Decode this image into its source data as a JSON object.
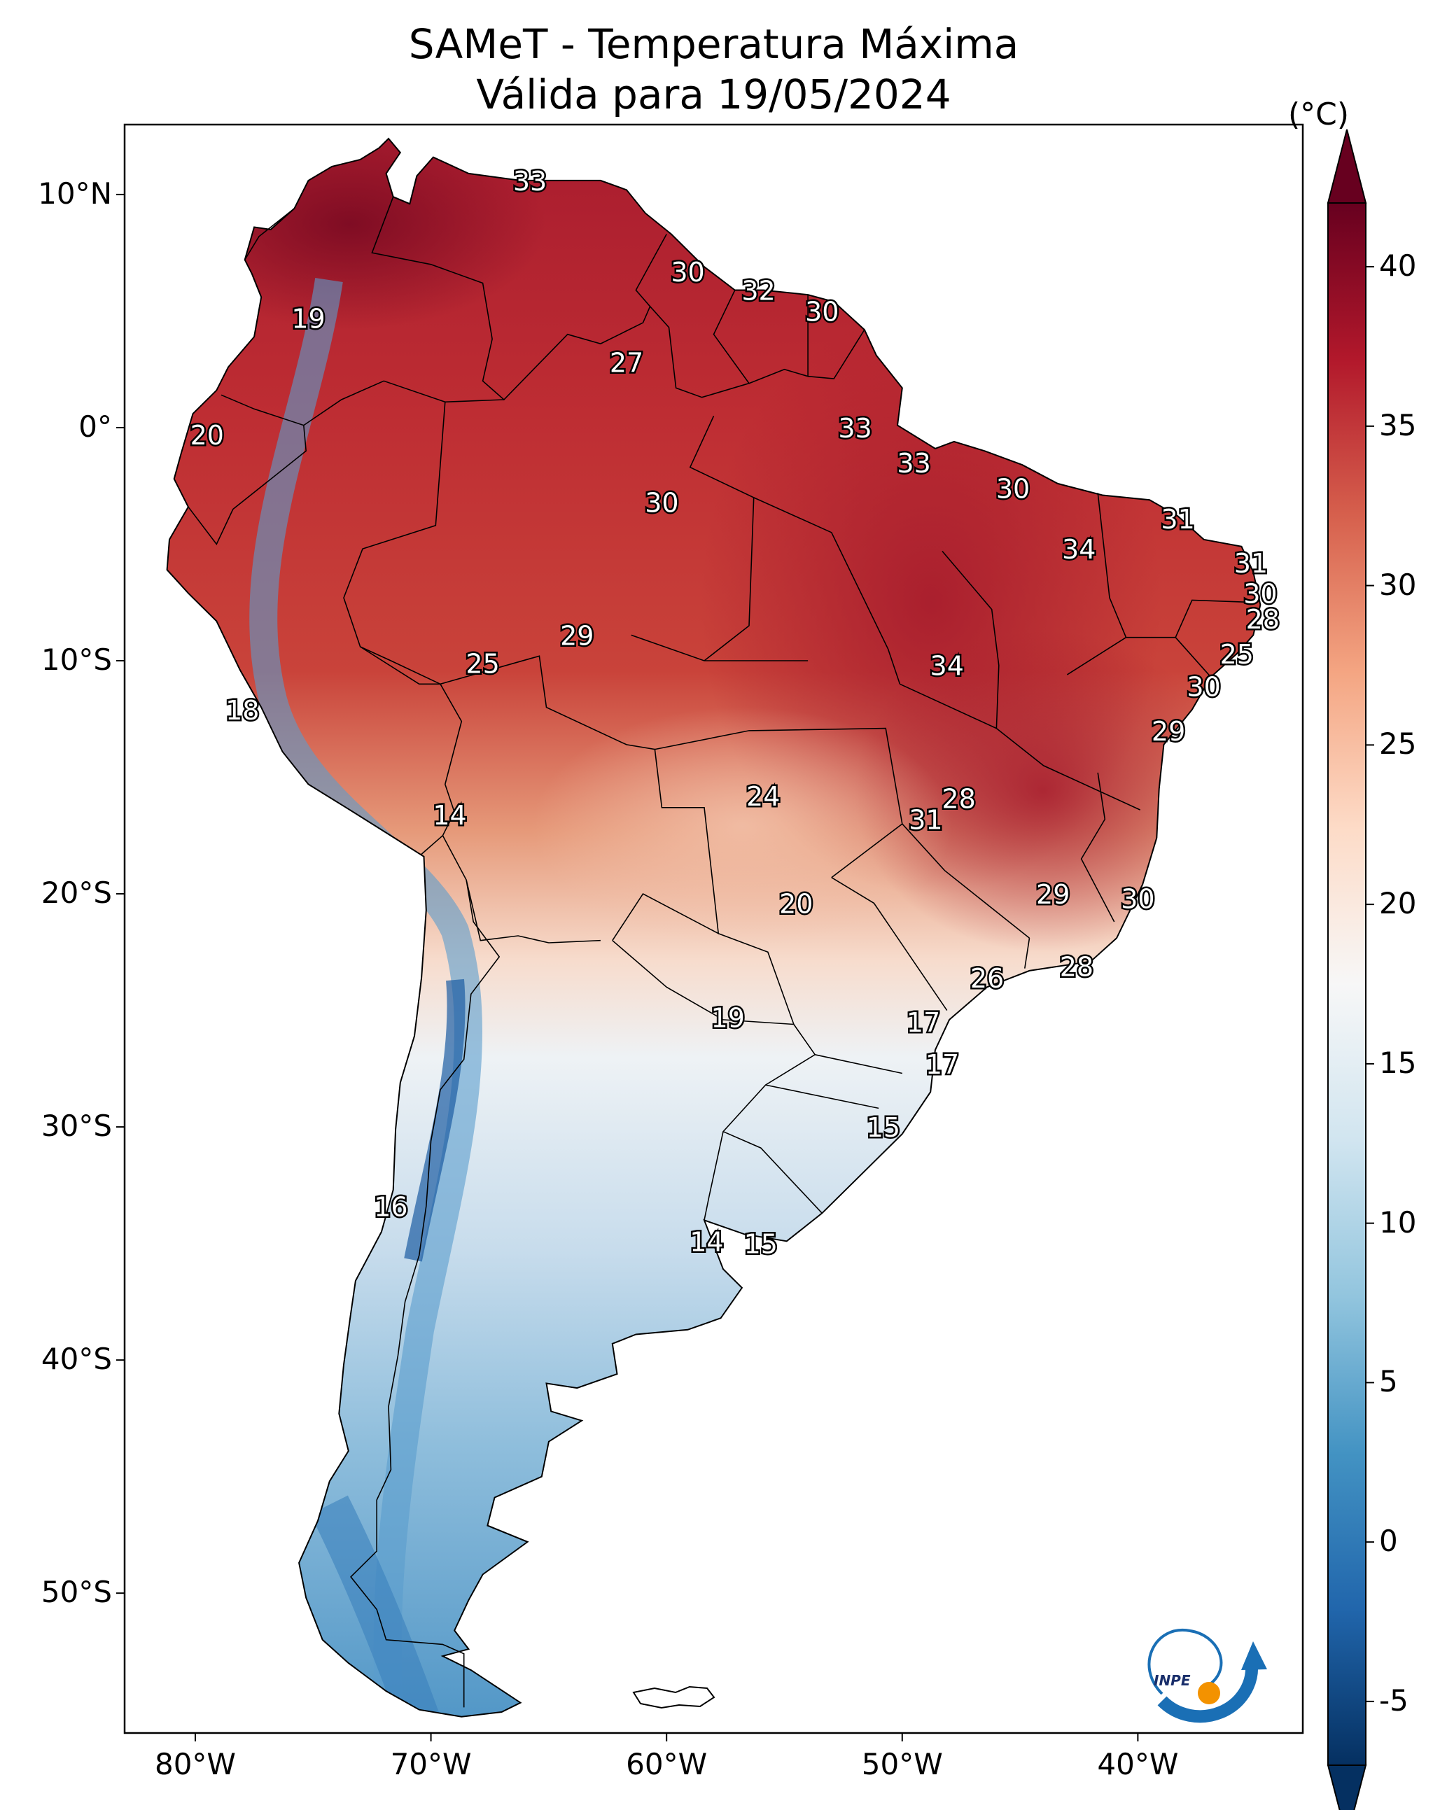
{
  "title": {
    "line1": "SAMeT - Temperatura Máxima",
    "line2": "Válida para 19/05/2024"
  },
  "map": {
    "lat_ticks": [
      "10°N",
      "0°",
      "10°S",
      "20°S",
      "30°S",
      "40°S",
      "50°S"
    ],
    "lon_ticks": [
      "80°W",
      "70°W",
      "60°W",
      "50°W",
      "40°W"
    ],
    "extent": {
      "lon_min": -83,
      "lon_max": -33,
      "lat_min": -56,
      "lat_max": 13
    },
    "labels": [
      {
        "text": "33",
        "lon": -65.8,
        "lat": 10.6
      },
      {
        "text": "19",
        "lon": -75.2,
        "lat": 4.7
      },
      {
        "text": "30",
        "lon": -59.1,
        "lat": 6.7
      },
      {
        "text": "32",
        "lon": -56.1,
        "lat": 5.9
      },
      {
        "text": "30",
        "lon": -53.4,
        "lat": 5.0
      },
      {
        "text": "27",
        "lon": -61.7,
        "lat": 2.8
      },
      {
        "text": "20",
        "lon": -79.5,
        "lat": -0.3
      },
      {
        "text": "33",
        "lon": -52.0,
        "lat": 0.0
      },
      {
        "text": "33",
        "lon": -49.5,
        "lat": -1.5
      },
      {
        "text": "30",
        "lon": -60.2,
        "lat": -3.2
      },
      {
        "text": "30",
        "lon": -45.3,
        "lat": -2.6
      },
      {
        "text": "31",
        "lon": -38.3,
        "lat": -3.9
      },
      {
        "text": "34",
        "lon": -42.5,
        "lat": -5.2
      },
      {
        "text": "31",
        "lon": -35.2,
        "lat": -5.8
      },
      {
        "text": "30",
        "lon": -34.8,
        "lat": -7.1
      },
      {
        "text": "28",
        "lon": -34.7,
        "lat": -8.2
      },
      {
        "text": "29",
        "lon": -63.8,
        "lat": -8.9
      },
      {
        "text": "25",
        "lon": -67.8,
        "lat": -10.1
      },
      {
        "text": "34",
        "lon": -48.1,
        "lat": -10.2
      },
      {
        "text": "25",
        "lon": -35.8,
        "lat": -9.7
      },
      {
        "text": "30",
        "lon": -37.2,
        "lat": -11.1
      },
      {
        "text": "18",
        "lon": -78.0,
        "lat": -12.1
      },
      {
        "text": "29",
        "lon": -38.7,
        "lat": -13.0
      },
      {
        "text": "24",
        "lon": -55.9,
        "lat": -15.8
      },
      {
        "text": "28",
        "lon": -47.6,
        "lat": -15.9
      },
      {
        "text": "31",
        "lon": -49.0,
        "lat": -16.8
      },
      {
        "text": "14",
        "lon": -69.2,
        "lat": -16.6
      },
      {
        "text": "29",
        "lon": -43.6,
        "lat": -20.0
      },
      {
        "text": "30",
        "lon": -40.0,
        "lat": -20.2
      },
      {
        "text": "20",
        "lon": -54.5,
        "lat": -20.4
      },
      {
        "text": "28",
        "lon": -42.6,
        "lat": -23.1
      },
      {
        "text": "26",
        "lon": -46.4,
        "lat": -23.6
      },
      {
        "text": "19",
        "lon": -57.4,
        "lat": -25.3
      },
      {
        "text": "17",
        "lon": -49.1,
        "lat": -25.5
      },
      {
        "text": "17",
        "lon": -48.3,
        "lat": -27.3
      },
      {
        "text": "15",
        "lon": -50.8,
        "lat": -30.0
      },
      {
        "text": "16",
        "lon": -71.7,
        "lat": -33.4
      },
      {
        "text": "14",
        "lon": -58.3,
        "lat": -34.9
      },
      {
        "text": "15",
        "lon": -56.0,
        "lat": -35.0
      }
    ]
  },
  "colorbar": {
    "unit": "(°C)",
    "ticks": [
      "40",
      "35",
      "30",
      "25",
      "20",
      "15",
      "10",
      "5",
      "0",
      "-5"
    ],
    "min": -7,
    "max": 42,
    "colors": [
      "#053061",
      "#2166ac",
      "#4393c3",
      "#92c5de",
      "#d1e5f0",
      "#f7f7f7",
      "#fddbc7",
      "#f4a582",
      "#d6604d",
      "#b2182b",
      "#67001f"
    ]
  },
  "logo": {
    "text": "INPE",
    "colors": {
      "blue": "#1a6fb5",
      "orange": "#f39200"
    }
  }
}
